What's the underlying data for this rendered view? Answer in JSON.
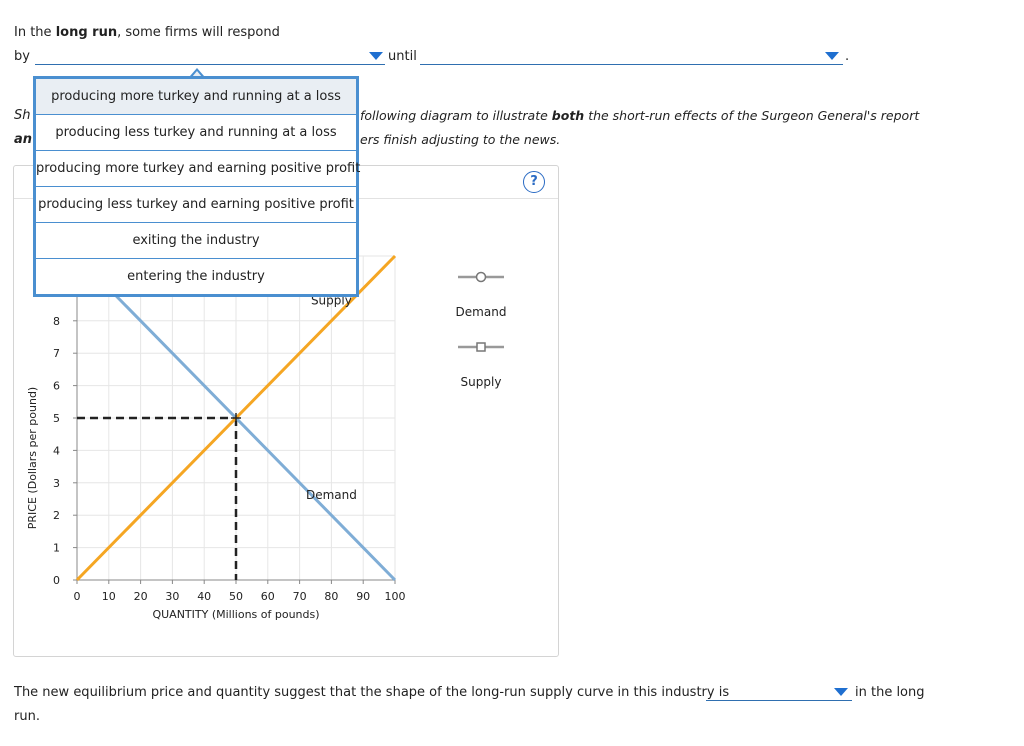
{
  "q1": {
    "line1_pre": "In the",
    "line1_bold": "long run",
    "line1_post": ", some firms will respond",
    "by": "by",
    "until": "until",
    "period": "."
  },
  "instructions": {
    "frag1_start": "Sh",
    "frag2_start": "an",
    "italic1_pre": "following diagram to illustrate",
    "italic1_bold": "both",
    "italic1_post": "the short-run effects of the Surgeon General's report",
    "italic2": "ers finish adjusting to the news."
  },
  "help_label": "?",
  "dropdown_menu": {
    "items": [
      "producing more turkey and running at a loss",
      "producing less turkey and running at a loss",
      "producing more turkey and earning positive profit",
      "producing less turkey and earning positive profit",
      "exiting the industry",
      "entering the industry"
    ],
    "highlighted_index": 0
  },
  "legend": {
    "demand_label": "Demand",
    "supply_label": "Supply"
  },
  "chart_data": {
    "type": "line",
    "xlabel": "QUANTITY (Millions of pounds)",
    "ylabel": "PRICE (Dollars per pound)",
    "xlim": [
      0,
      100
    ],
    "ylim": [
      0,
      10
    ],
    "x_ticks": [
      0,
      10,
      20,
      30,
      40,
      50,
      60,
      70,
      80,
      90,
      100
    ],
    "y_ticks": [
      0,
      1,
      2,
      3,
      4,
      5,
      6,
      7,
      8
    ],
    "series": [
      {
        "name": "Demand",
        "color": "#7fadd6",
        "x": [
          0,
          100
        ],
        "y": [
          10,
          0
        ]
      },
      {
        "name": "Supply",
        "color": "#f5a623",
        "x": [
          0,
          100
        ],
        "y": [
          0,
          10
        ]
      }
    ],
    "equilibrium": {
      "x": 50,
      "y": 5
    },
    "curve_labels": [
      {
        "text": "Supply",
        "x": 80,
        "y": 8.5
      },
      {
        "text": "Demand",
        "x": 80,
        "y": 2.5
      }
    ]
  },
  "q2": {
    "text": "The new equilibrium price and quantity suggest that the shape of the long-run supply curve in this industry is",
    "after": "in the long",
    "line2": "run."
  },
  "colors": {
    "accent": "#1f6fd0",
    "demand": "#7fadd6",
    "supply": "#f5a623"
  }
}
